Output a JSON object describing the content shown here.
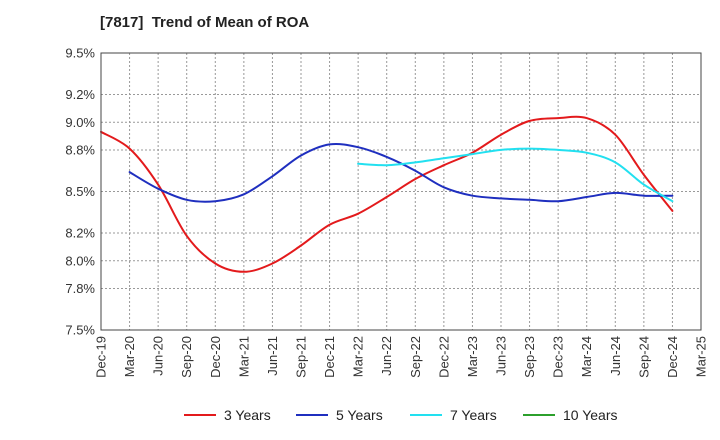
{
  "chart_data": {
    "type": "line",
    "title": "[7817]  Trend of Mean of ROA",
    "xlabel": "",
    "ylabel": "",
    "x_ticks": [
      "Dec-19",
      "Mar-20",
      "Jun-20",
      "Sep-20",
      "Dec-20",
      "Mar-21",
      "Jun-21",
      "Sep-21",
      "Dec-21",
      "Mar-22",
      "Jun-22",
      "Sep-22",
      "Dec-22",
      "Mar-23",
      "Jun-23",
      "Sep-23",
      "Dec-23",
      "Mar-24",
      "Jun-24",
      "Sep-24",
      "Dec-24",
      "Mar-25"
    ],
    "y_ticks": [
      "7.5%",
      "7.8%",
      "8.0%",
      "8.2%",
      "8.5%",
      "8.8%",
      "9.0%",
      "9.2%",
      "9.5%"
    ],
    "ylim": [
      7.5,
      9.5
    ],
    "grid": true,
    "legend_position": "bottom",
    "series": [
      {
        "name": "3 Years",
        "color": "#e31a1c",
        "points": [
          [
            "Dec-19",
            8.93
          ],
          [
            "Mar-20",
            8.81
          ],
          [
            "Jun-20",
            8.55
          ],
          [
            "Sep-20",
            8.18
          ],
          [
            "Dec-20",
            7.98
          ],
          [
            "Mar-21",
            7.92
          ],
          [
            "Jun-21",
            7.98
          ],
          [
            "Sep-21",
            8.11
          ],
          [
            "Dec-21",
            8.26
          ],
          [
            "Mar-22",
            8.34
          ],
          [
            "Jun-22",
            8.46
          ],
          [
            "Sep-22",
            8.59
          ],
          [
            "Dec-22",
            8.69
          ],
          [
            "Mar-23",
            8.78
          ],
          [
            "Jun-23",
            8.91
          ],
          [
            "Sep-23",
            9.01
          ],
          [
            "Dec-23",
            9.03
          ],
          [
            "Mar-24",
            9.03
          ],
          [
            "Jun-24",
            8.91
          ],
          [
            "Sep-24",
            8.62
          ],
          [
            "Dec-24",
            8.36
          ]
        ]
      },
      {
        "name": "5 Years",
        "color": "#1f2fbf",
        "points": [
          [
            "Mar-20",
            8.64
          ],
          [
            "Jun-20",
            8.52
          ],
          [
            "Sep-20",
            8.44
          ],
          [
            "Dec-20",
            8.43
          ],
          [
            "Mar-21",
            8.48
          ],
          [
            "Jun-21",
            8.61
          ],
          [
            "Sep-21",
            8.76
          ],
          [
            "Dec-21",
            8.84
          ],
          [
            "Mar-22",
            8.82
          ],
          [
            "Jun-22",
            8.75
          ],
          [
            "Sep-22",
            8.65
          ],
          [
            "Dec-22",
            8.53
          ],
          [
            "Mar-23",
            8.47
          ],
          [
            "Jun-23",
            8.45
          ],
          [
            "Sep-23",
            8.44
          ],
          [
            "Dec-23",
            8.43
          ],
          [
            "Mar-24",
            8.46
          ],
          [
            "Jun-24",
            8.49
          ],
          [
            "Sep-24",
            8.47
          ],
          [
            "Dec-24",
            8.47
          ]
        ]
      },
      {
        "name": "7 Years",
        "color": "#22e0f0",
        "points": [
          [
            "Mar-22",
            8.7
          ],
          [
            "Jun-22",
            8.69
          ],
          [
            "Sep-22",
            8.71
          ],
          [
            "Dec-22",
            8.74
          ],
          [
            "Mar-23",
            8.77
          ],
          [
            "Jun-23",
            8.8
          ],
          [
            "Sep-23",
            8.81
          ],
          [
            "Dec-23",
            8.8
          ],
          [
            "Mar-24",
            8.78
          ],
          [
            "Jun-24",
            8.71
          ],
          [
            "Sep-24",
            8.55
          ],
          [
            "Dec-24",
            8.43
          ]
        ]
      },
      {
        "name": "10 Years",
        "color": "#2ca02c",
        "points": []
      }
    ]
  }
}
